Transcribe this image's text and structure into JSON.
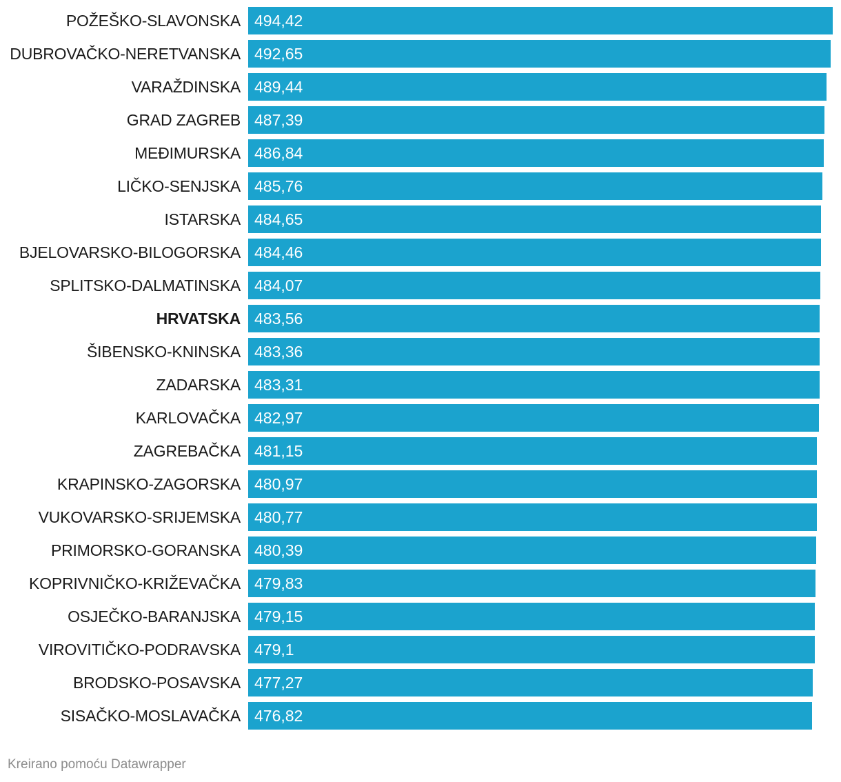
{
  "chart_data": {
    "type": "bar",
    "orientation": "horizontal",
    "categories": [
      "POŽEŠKO-SLAVONSKA",
      "DUBROVAČKO-NERETVANSKA",
      "VARAŽDINSKA",
      "GRAD ZAGREB",
      "MEĐIMURSKA",
      "LIČKO-SENJSKA",
      "ISTARSKA",
      "BJELOVARSKO-BILOGORSKA",
      "SPLITSKO-DALMATINSKA",
      "HRVATSKA",
      "ŠIBENSKO-KNINSKA",
      "ZADARSKA",
      "KARLOVAČKA",
      "ZAGREBAČKA",
      "KRAPINSKO-ZAGORSKA",
      "VUKOVARSKO-SRIJEMSKA",
      "PRIMORSKO-GORANSKA",
      "KOPRIVNIČKO-KRIŽEVAČKA",
      "OSJEČKO-BARANJSKA",
      "VIROVITIČKO-PODRAVSKA",
      "BRODSKO-POSAVSKA",
      "SISAČKO-MOSLAVAČKA"
    ],
    "values": [
      494.42,
      492.65,
      489.44,
      487.39,
      486.84,
      485.76,
      484.65,
      484.46,
      484.07,
      483.56,
      483.36,
      483.31,
      482.97,
      481.15,
      480.97,
      480.77,
      480.39,
      479.83,
      479.15,
      479.1,
      477.27,
      476.82
    ],
    "value_labels": [
      "494,42",
      "492,65",
      "489,44",
      "487,39",
      "486,84",
      "485,76",
      "484,65",
      "484,46",
      "484,07",
      "483,56",
      "483,36",
      "483,31",
      "482,97",
      "481,15",
      "480,97",
      "480,77",
      "480,39",
      "479,83",
      "479,15",
      "479,1",
      "477,27",
      "476,82"
    ],
    "highlighted_category": "HRVATSKA",
    "xlim": [
      0,
      494.42
    ],
    "bar_color": "#1ba3ce",
    "grid": false,
    "legend": "none"
  },
  "footer": {
    "credit": "Kreirano pomoću Datawrapper"
  }
}
